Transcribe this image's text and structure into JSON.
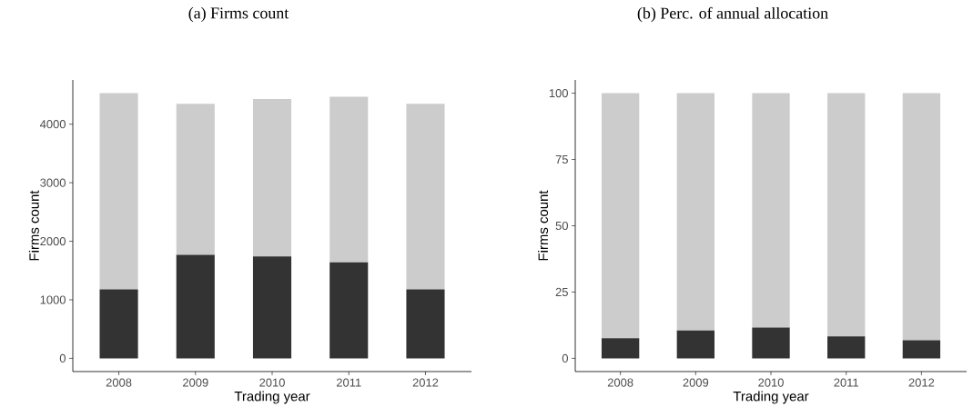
{
  "chart_data": [
    {
      "type": "bar",
      "title": "(a) Firms count",
      "xlabel": "Trading year",
      "ylabel": "Firms count",
      "categories": [
        "2008",
        "2009",
        "2010",
        "2011",
        "2012"
      ],
      "stacked": true,
      "ylim": [
        -226,
        4756
      ],
      "yticks": [
        0,
        1000,
        2000,
        3000,
        4000
      ],
      "grid": false,
      "series": [
        {
          "color": "#333333",
          "values": [
            1180,
            1770,
            1740,
            1640,
            1180
          ]
        },
        {
          "color": "#cccccc",
          "values": [
            3350,
            2580,
            2690,
            2830,
            3170
          ]
        }
      ]
    },
    {
      "type": "bar",
      "title": "(b) Perc. of annual allocation",
      "xlabel": "Trading year",
      "ylabel": "Firms count",
      "categories": [
        "2008",
        "2009",
        "2010",
        "2011",
        "2012"
      ],
      "stacked": true,
      "ylim": [
        -5,
        105
      ],
      "yticks": [
        0,
        25,
        50,
        75,
        100
      ],
      "grid": false,
      "series": [
        {
          "color": "#333333",
          "values": [
            7.6,
            10.5,
            11.6,
            8.3,
            6.8
          ]
        },
        {
          "color": "#cccccc",
          "values": [
            92.4,
            89.5,
            88.4,
            91.7,
            93.2
          ]
        }
      ]
    }
  ]
}
